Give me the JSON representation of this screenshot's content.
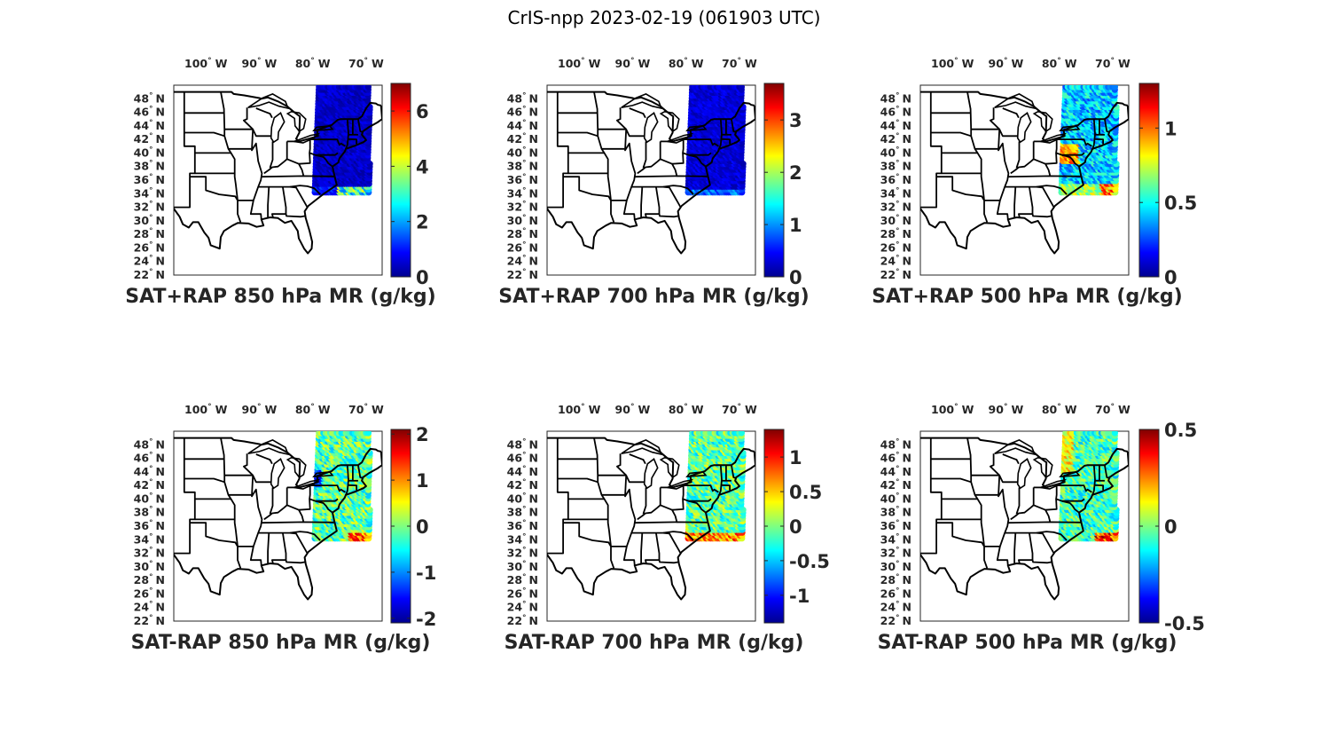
{
  "figure": {
    "title": "CrIS-npp 2023-02-19 (061903 UTC)"
  },
  "longitude_labels": [
    "100",
    "W",
    "90",
    "W",
    "80",
    "W",
    "70",
    "W"
  ],
  "lon_ticks": [
    {
      "deg": "100",
      "hemi": "W"
    },
    {
      "deg": "90",
      "hemi": "W"
    },
    {
      "deg": "80",
      "hemi": "W"
    },
    {
      "deg": "70",
      "hemi": "W"
    }
  ],
  "lat_ticks": [
    {
      "deg": "48",
      "hemi": "N"
    },
    {
      "deg": "46",
      "hemi": "N"
    },
    {
      "deg": "44",
      "hemi": "N"
    },
    {
      "deg": "42",
      "hemi": "N"
    },
    {
      "deg": "40",
      "hemi": "N"
    },
    {
      "deg": "38",
      "hemi": "N"
    },
    {
      "deg": "36",
      "hemi": "N"
    },
    {
      "deg": "34",
      "hemi": "N"
    },
    {
      "deg": "32",
      "hemi": "N"
    },
    {
      "deg": "30",
      "hemi": "N"
    },
    {
      "deg": "28",
      "hemi": "N"
    },
    {
      "deg": "26",
      "hemi": "N"
    },
    {
      "deg": "24",
      "hemi": "N"
    },
    {
      "deg": "22",
      "hemi": "N"
    }
  ],
  "degree_symbol": "°",
  "colormap": "jet",
  "panels": [
    {
      "title": "SAT+RAP 850 hPa MR (g/kg)",
      "clim": [
        0,
        7
      ],
      "ticks": [
        "0",
        "2",
        "4",
        "6"
      ],
      "tick_values": [
        0,
        2,
        4,
        6
      ],
      "field": "total_850"
    },
    {
      "title": "SAT+RAP 700 hPa MR (g/kg)",
      "clim": [
        0,
        3.7
      ],
      "ticks": [
        "0",
        "1",
        "2",
        "3"
      ],
      "tick_values": [
        0,
        1,
        2,
        3
      ],
      "field": "total_700"
    },
    {
      "title": "SAT+RAP 500 hPa MR (g/kg)",
      "clim": [
        0,
        1.3
      ],
      "ticks": [
        "0",
        "0.5",
        "1"
      ],
      "tick_values": [
        0,
        0.5,
        1
      ],
      "field": "total_500"
    },
    {
      "title": "SAT-RAP 850 hPa MR (g/kg)",
      "clim": [
        -2.1,
        2.1
      ],
      "ticks": [
        "-2",
        "-1",
        "0",
        "1",
        "2"
      ],
      "tick_values": [
        -2,
        -1,
        0,
        1,
        2
      ],
      "field": "diff_850"
    },
    {
      "title": "SAT-RAP 700 hPa MR (g/kg)",
      "clim": [
        -1.4,
        1.4
      ],
      "ticks": [
        "-1",
        "-0.5",
        "0",
        "0.5",
        "1"
      ],
      "tick_values": [
        -1,
        -0.5,
        0,
        0.5,
        1
      ],
      "field": "diff_700"
    },
    {
      "title": "SAT-RAP 500 hPa MR (g/kg)",
      "clim": [
        -0.5,
        0.5
      ],
      "ticks": [
        "-0.5",
        "0",
        "0.5"
      ],
      "tick_values": [
        -0.5,
        0,
        0.5
      ],
      "field": "diff_500"
    }
  ],
  "map_extent": {
    "lon": [
      -106,
      -67
    ],
    "lat": [
      22,
      50
    ]
  },
  "swath": {
    "lon": [
      -79.5,
      -69.3
    ],
    "lat": [
      34.2,
      49.8
    ]
  }
}
